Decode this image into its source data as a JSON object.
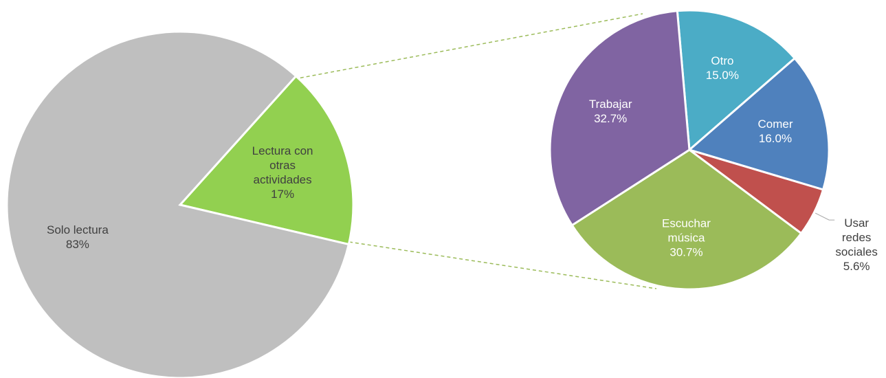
{
  "chart_data": [
    {
      "type": "pie",
      "categories": [
        "Lectura con otras actividades",
        "Solo lectura"
      ],
      "values": [
        17,
        83
      ],
      "value_labels": [
        "17%",
        "83%"
      ],
      "colors": [
        "#92d050",
        "#bfbfbf"
      ]
    },
    {
      "type": "pie",
      "categories": [
        "Otro",
        "Comer",
        "Usar redes sociales",
        "Escuchar música",
        "Trabajar"
      ],
      "values": [
        15.0,
        16.0,
        5.6,
        30.7,
        32.7
      ],
      "value_labels": [
        "15.0%",
        "16.0%",
        "5.6%",
        "30.7%",
        "32.7%"
      ],
      "colors": [
        "#4bacc6",
        "#4f81bd",
        "#c0504d",
        "#9bbb59",
        "#8064a2"
      ]
    }
  ]
}
